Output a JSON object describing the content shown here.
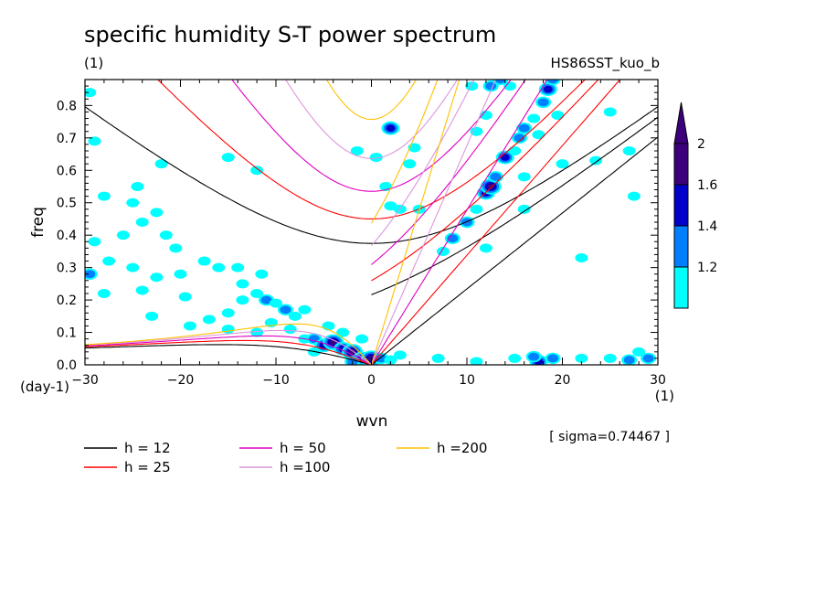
{
  "header": {
    "title": "specific humidity S-T power spectrum",
    "units_left": "(1)",
    "run_label": "HS86SST_kuo_b"
  },
  "axes": {
    "x_label": "wvn",
    "y_label": "freq",
    "x_unit": "(1)",
    "y_unit": "(day-1)",
    "sigma_note": "[ sigma=0.74467 ]"
  },
  "chart_data": {
    "type": "heatmap",
    "title": "specific humidity S-T power spectrum",
    "xlabel": "wvn",
    "ylabel": "freq",
    "xlim": [
      -30,
      30
    ],
    "ylim": [
      0,
      0.88
    ],
    "x_ticks": [
      "-30",
      "-20",
      "-10",
      "0",
      "10",
      "20",
      "30"
    ],
    "y_ticks": [
      "0.0",
      "0.1",
      "0.2",
      "0.3",
      "0.4",
      "0.5",
      "0.6",
      "0.7",
      "0.8"
    ],
    "colorbar": {
      "levels": [
        "1.2",
        "1.4",
        "1.6",
        "2"
      ],
      "colors": [
        "#00ffff",
        "#0080ff",
        "#0000c8",
        "#3c007c"
      ]
    },
    "dispersion_curves": [
      {
        "name": "h = 12",
        "h": 12,
        "color": "#000000"
      },
      {
        "name": "h = 25",
        "h": 25,
        "color": "#ff0000"
      },
      {
        "name": "h = 50",
        "h": 50,
        "color": "#e000c0"
      },
      {
        "name": "h =100",
        "h": 100,
        "color": "#dc96dc"
      },
      {
        "name": "h =200",
        "h": 200,
        "color": "#ffc000"
      }
    ],
    "blobs": [
      {
        "x": -29.5,
        "y": 0.84,
        "level": 0
      },
      {
        "x": -29,
        "y": 0.69,
        "level": 0
      },
      {
        "x": -29.5,
        "y": 0.28,
        "level": 1
      },
      {
        "x": -28,
        "y": 0.22,
        "level": 0
      },
      {
        "x": -29,
        "y": 0.38,
        "level": 0
      },
      {
        "x": -27.5,
        "y": 0.32,
        "level": 0
      },
      {
        "x": -26,
        "y": 0.4,
        "level": 0
      },
      {
        "x": -25,
        "y": 0.5,
        "level": 0
      },
      {
        "x": -24,
        "y": 0.44,
        "level": 0
      },
      {
        "x": -22.5,
        "y": 0.47,
        "level": 0
      },
      {
        "x": -24.5,
        "y": 0.55,
        "level": 0
      },
      {
        "x": -21.5,
        "y": 0.4,
        "level": 0
      },
      {
        "x": -20.5,
        "y": 0.36,
        "level": 0
      },
      {
        "x": -25,
        "y": 0.3,
        "level": 0
      },
      {
        "x": -24,
        "y": 0.23,
        "level": 0
      },
      {
        "x": -22.5,
        "y": 0.27,
        "level": 0
      },
      {
        "x": -20,
        "y": 0.28,
        "level": 0
      },
      {
        "x": -19.5,
        "y": 0.21,
        "level": 0
      },
      {
        "x": -17.5,
        "y": 0.32,
        "level": 0
      },
      {
        "x": -16,
        "y": 0.3,
        "level": 0
      },
      {
        "x": -14,
        "y": 0.3,
        "level": 0
      },
      {
        "x": -13.5,
        "y": 0.25,
        "level": 0
      },
      {
        "x": -11.5,
        "y": 0.28,
        "level": 0
      },
      {
        "x": -19,
        "y": 0.12,
        "level": 0
      },
      {
        "x": -17,
        "y": 0.14,
        "level": 0
      },
      {
        "x": -15,
        "y": 0.16,
        "level": 0
      },
      {
        "x": -13.5,
        "y": 0.2,
        "level": 0
      },
      {
        "x": -12,
        "y": 0.22,
        "level": 0
      },
      {
        "x": -11,
        "y": 0.2,
        "level": 1
      },
      {
        "x": -10,
        "y": 0.19,
        "level": 0
      },
      {
        "x": -9,
        "y": 0.17,
        "level": 1
      },
      {
        "x": -8,
        "y": 0.15,
        "level": 0
      },
      {
        "x": -7,
        "y": 0.17,
        "level": 0
      },
      {
        "x": -10.5,
        "y": 0.13,
        "level": 0
      },
      {
        "x": -8.5,
        "y": 0.11,
        "level": 0
      },
      {
        "x": -12,
        "y": 0.1,
        "level": 0
      },
      {
        "x": -15,
        "y": 0.11,
        "level": 0
      },
      {
        "x": -23,
        "y": 0.15,
        "level": 0
      },
      {
        "x": -28,
        "y": 0.52,
        "level": 0
      },
      {
        "x": -22,
        "y": 0.62,
        "level": 0
      },
      {
        "x": -15,
        "y": 0.64,
        "level": 0
      },
      {
        "x": -12,
        "y": 0.6,
        "level": 0
      },
      {
        "x": -7,
        "y": 0.08,
        "level": 0
      },
      {
        "x": -6,
        "y": 0.08,
        "level": 1
      },
      {
        "x": -5,
        "y": 0.06,
        "level": 2
      },
      {
        "x": -4,
        "y": 0.07,
        "level": 3
      },
      {
        "x": -3,
        "y": 0.05,
        "level": 2
      },
      {
        "x": -2,
        "y": 0.04,
        "level": 3
      },
      {
        "x": -1,
        "y": 0.02,
        "level": 2
      },
      {
        "x": 0,
        "y": 0.02,
        "level": 3
      },
      {
        "x": -6,
        "y": 0.04,
        "level": 0
      },
      {
        "x": -3,
        "y": 0.1,
        "level": 0
      },
      {
        "x": -2,
        "y": 0.01,
        "level": 1
      },
      {
        "x": 1,
        "y": 0.02,
        "level": 1
      },
      {
        "x": 2,
        "y": 0.015,
        "level": 0
      },
      {
        "x": 3,
        "y": 0.03,
        "level": 0
      },
      {
        "x": -1,
        "y": 0.08,
        "level": 0
      },
      {
        "x": -4.5,
        "y": 0.12,
        "level": 0
      },
      {
        "x": -1.5,
        "y": 0.66,
        "level": 0
      },
      {
        "x": 0.5,
        "y": 0.64,
        "level": 0
      },
      {
        "x": 2,
        "y": 0.73,
        "level": 2
      },
      {
        "x": 4,
        "y": 0.62,
        "level": 0
      },
      {
        "x": 4.5,
        "y": 0.67,
        "level": 0
      },
      {
        "x": 1.5,
        "y": 0.55,
        "level": 0
      },
      {
        "x": 2,
        "y": 0.49,
        "level": 0
      },
      {
        "x": 3,
        "y": 0.48,
        "level": 0
      },
      {
        "x": 5,
        "y": 0.48,
        "level": 0
      },
      {
        "x": 7.5,
        "y": 0.35,
        "level": 0
      },
      {
        "x": 8.5,
        "y": 0.39,
        "level": 1
      },
      {
        "x": 10,
        "y": 0.44,
        "level": 1
      },
      {
        "x": 11,
        "y": 0.48,
        "level": 0
      },
      {
        "x": 12,
        "y": 0.53,
        "level": 2
      },
      {
        "x": 12.5,
        "y": 0.55,
        "level": 3
      },
      {
        "x": 13,
        "y": 0.58,
        "level": 1
      },
      {
        "x": 14,
        "y": 0.64,
        "level": 2
      },
      {
        "x": 15,
        "y": 0.66,
        "level": 0
      },
      {
        "x": 15.5,
        "y": 0.7,
        "level": 1
      },
      {
        "x": 16,
        "y": 0.73,
        "level": 1
      },
      {
        "x": 17,
        "y": 0.76,
        "level": 0
      },
      {
        "x": 18,
        "y": 0.81,
        "level": 1
      },
      {
        "x": 18.5,
        "y": 0.85,
        "level": 2
      },
      {
        "x": 19,
        "y": 0.88,
        "level": 1
      },
      {
        "x": 19.5,
        "y": 0.77,
        "level": 0
      },
      {
        "x": 12,
        "y": 0.77,
        "level": 0
      },
      {
        "x": 11,
        "y": 0.72,
        "level": 0
      },
      {
        "x": 16,
        "y": 0.58,
        "level": 0
      },
      {
        "x": 13.5,
        "y": 0.88,
        "level": 1
      },
      {
        "x": 12.5,
        "y": 0.86,
        "level": 1
      },
      {
        "x": 10.5,
        "y": 0.86,
        "level": 0
      },
      {
        "x": 14.5,
        "y": 0.86,
        "level": 0
      },
      {
        "x": 17.5,
        "y": 0.71,
        "level": 0
      },
      {
        "x": 25,
        "y": 0.78,
        "level": 0
      },
      {
        "x": 27,
        "y": 0.66,
        "level": 0
      },
      {
        "x": 27.5,
        "y": 0.52,
        "level": 0
      },
      {
        "x": 23.5,
        "y": 0.63,
        "level": 0
      },
      {
        "x": 20,
        "y": 0.62,
        "level": 0
      },
      {
        "x": 22,
        "y": 0.33,
        "level": 0
      },
      {
        "x": 12,
        "y": 0.36,
        "level": 0
      },
      {
        "x": 16,
        "y": 0.48,
        "level": 0
      },
      {
        "x": 17.5,
        "y": 0.01,
        "level": 2
      },
      {
        "x": 17,
        "y": 0.025,
        "level": 1
      },
      {
        "x": 19,
        "y": 0.02,
        "level": 1
      },
      {
        "x": 15,
        "y": 0.02,
        "level": 0
      },
      {
        "x": 22,
        "y": 0.02,
        "level": 0
      },
      {
        "x": 25,
        "y": 0.02,
        "level": 0
      },
      {
        "x": 27,
        "y": 0.015,
        "level": 1
      },
      {
        "x": 29,
        "y": 0.02,
        "level": 1
      },
      {
        "x": 28,
        "y": 0.04,
        "level": 0
      },
      {
        "x": 11,
        "y": 0.01,
        "level": 0
      },
      {
        "x": 7,
        "y": 0.02,
        "level": 0
      }
    ]
  }
}
